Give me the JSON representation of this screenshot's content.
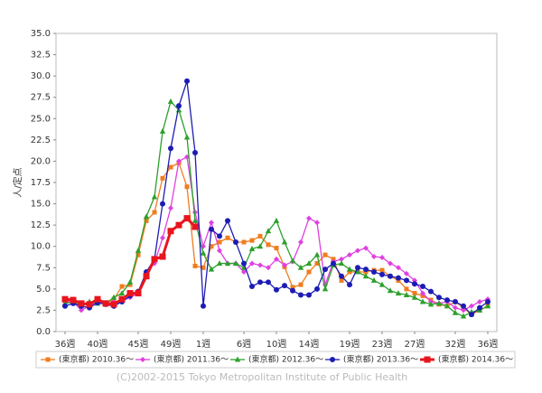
{
  "chart_data": {
    "type": "line",
    "y_label": "人/定点",
    "categories": [
      "36週",
      null,
      null,
      null,
      "40週",
      null,
      null,
      null,
      null,
      "45週",
      null,
      null,
      null,
      "49週",
      null,
      null,
      null,
      "1週",
      null,
      null,
      null,
      null,
      "6週",
      null,
      null,
      null,
      "10週",
      null,
      null,
      null,
      "14週",
      null,
      null,
      null,
      null,
      "19週",
      null,
      null,
      null,
      "23週",
      null,
      null,
      null,
      "27週",
      null,
      null,
      null,
      null,
      "32週",
      null,
      null,
      null,
      "36週"
    ],
    "series": [
      {
        "name": "(東京都) 2010.36〜",
        "color": "#f07c1e",
        "marker": "square-small",
        "values": [
          3.8,
          3.8,
          3.3,
          3.3,
          3.8,
          3.3,
          3.8,
          5.3,
          5.5,
          9.0,
          13.0,
          14.0,
          18.0,
          19.3,
          19.8,
          17.0,
          7.7,
          7.5,
          10.0,
          10.5,
          11.0,
          10.5,
          10.5,
          10.7,
          11.2,
          10.2,
          9.8,
          7.6,
          5.2,
          5.5,
          7.0,
          8.0,
          9.0,
          8.5,
          6.0,
          7.0,
          7.0,
          7.0,
          7.2,
          7.2,
          6.5,
          6.0,
          5.0,
          4.5,
          4.2,
          3.7,
          3.2,
          3.0,
          3.5,
          2.8,
          2.0,
          2.5,
          3.0
        ]
      },
      {
        "name": "(東京都) 2011.36〜",
        "color": "#e040e0",
        "marker": "diamond",
        "values": [
          3.5,
          3.5,
          2.5,
          3.0,
          3.5,
          3.2,
          3.5,
          3.6,
          4.0,
          4.5,
          7.0,
          8.0,
          11.0,
          14.5,
          20.0,
          20.5,
          14.0,
          10.0,
          12.8,
          9.5,
          8.0,
          8.0,
          7.0,
          8.0,
          7.8,
          7.5,
          8.5,
          7.8,
          8.2,
          10.5,
          13.3,
          12.8,
          5.5,
          8.2,
          8.5,
          9.0,
          9.5,
          9.8,
          8.8,
          8.7,
          8.0,
          7.5,
          6.8,
          6.0,
          4.5,
          3.5,
          3.3,
          3.5,
          2.8,
          2.5,
          3.0,
          3.5,
          3.8
        ]
      },
      {
        "name": "(東京都) 2012.36〜",
        "color": "#2ca02c",
        "marker": "triangle",
        "values": [
          3.3,
          3.5,
          3.0,
          3.5,
          3.3,
          3.3,
          4.0,
          4.5,
          5.8,
          9.5,
          13.5,
          15.8,
          23.5,
          27.0,
          26.0,
          22.8,
          13.0,
          9.2,
          7.3,
          8.0,
          8.0,
          8.0,
          7.5,
          9.7,
          10.0,
          11.8,
          13.0,
          10.5,
          8.3,
          7.5,
          8.0,
          9.0,
          5.0,
          7.8,
          8.0,
          7.3,
          7.0,
          6.5,
          6.0,
          5.5,
          4.8,
          4.5,
          4.3,
          4.0,
          3.5,
          3.2,
          3.3,
          3.0,
          2.2,
          1.8,
          2.3,
          2.5,
          3.0
        ]
      },
      {
        "name": "(東京都) 2013.36〜",
        "color": "#1c1cb4",
        "marker": "circle",
        "values": [
          3.0,
          3.3,
          3.0,
          2.8,
          3.4,
          3.2,
          3.0,
          3.5,
          4.2,
          4.7,
          7.0,
          8.5,
          15.0,
          21.5,
          26.5,
          29.4,
          21.0,
          3.0,
          12.0,
          11.2,
          13.0,
          10.5,
          8.0,
          5.3,
          5.8,
          5.8,
          4.9,
          5.4,
          4.8,
          4.3,
          4.3,
          5.0,
          7.3,
          8.0,
          6.5,
          5.5,
          7.5,
          7.3,
          7.0,
          6.7,
          6.5,
          6.3,
          6.0,
          5.6,
          5.3,
          4.7,
          4.0,
          3.7,
          3.5,
          3.0,
          2.0,
          2.8,
          3.5
        ]
      },
      {
        "name": "(東京都) 2014.36〜",
        "color": "#e8141e",
        "marker": "square",
        "width": 3,
        "values": [
          3.8,
          3.7,
          3.3,
          3.2,
          3.8,
          3.3,
          3.2,
          3.8,
          4.5,
          4.5,
          6.5,
          8.5,
          8.8,
          11.8,
          12.5,
          13.3,
          12.3,
          null,
          null,
          null,
          null,
          null,
          null,
          null,
          null,
          null,
          null,
          null,
          null,
          null,
          null,
          null,
          null,
          null,
          null,
          null,
          null,
          null,
          null,
          null,
          null,
          null,
          null,
          null,
          null,
          null,
          null,
          null,
          null,
          null,
          null,
          null,
          null
        ]
      }
    ],
    "ylim": [
      0,
      35
    ],
    "yticks": [
      {
        "value": 0,
        "label": "0.0"
      },
      {
        "value": 2.5,
        "label": "2.5"
      },
      {
        "value": 5,
        "label": "5.0"
      },
      {
        "value": 7.5,
        "label": "7.5"
      },
      {
        "value": 10,
        "label": "10.0"
      },
      {
        "value": 12.5,
        "label": "12.5"
      },
      {
        "value": 15,
        "label": "15.0"
      },
      {
        "value": 17.5,
        "label": "17.5"
      },
      {
        "value": 20,
        "label": "20.0"
      },
      {
        "value": 22.5,
        "label": "22.5"
      },
      {
        "value": 25,
        "label": "25.0"
      },
      {
        "value": 27.5,
        "label": "27.5"
      },
      {
        "value": 30,
        "label": "30.0"
      },
      {
        "value": 32.5,
        "label": "32.5"
      },
      {
        "value": 35,
        "label": "35.0"
      }
    ],
    "footer": "(C)2002-2015 Tokyo Metropolitan Institute of Public Health"
  }
}
